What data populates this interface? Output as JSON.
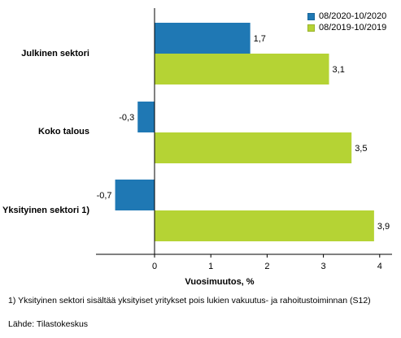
{
  "chart_data": {
    "type": "bar",
    "orientation": "horizontal",
    "categories": [
      "Julkinen sektori",
      "Koko talous",
      "Yksityinen sektori 1)"
    ],
    "series": [
      {
        "name": "08/2020-10/2020",
        "color": "#1f78b4",
        "values": [
          1.7,
          -0.3,
          -0.7
        ],
        "labels": [
          "1,7",
          "-0,3",
          "-0,7"
        ]
      },
      {
        "name": "08/2019-10/2019",
        "color": "#b5d334",
        "values": [
          3.1,
          3.5,
          3.9
        ],
        "labels": [
          "3,1",
          "3,5",
          "3,9"
        ]
      }
    ],
    "xlabel": "Vuosimuutos, %",
    "xlim": [
      -1,
      4.3
    ],
    "xticks": [
      0,
      1,
      2,
      3,
      4
    ],
    "xtick_labels": [
      "0",
      "1",
      "2",
      "3",
      "4"
    ],
    "grid": false,
    "legend_position": "top-right"
  },
  "footnote": "1) Yksityinen sektori sisältää yksityiset yritykset pois lukien vakuutus- ja rahoitustoiminnan (S12)",
  "source": "Lähde: Tilastokeskus"
}
